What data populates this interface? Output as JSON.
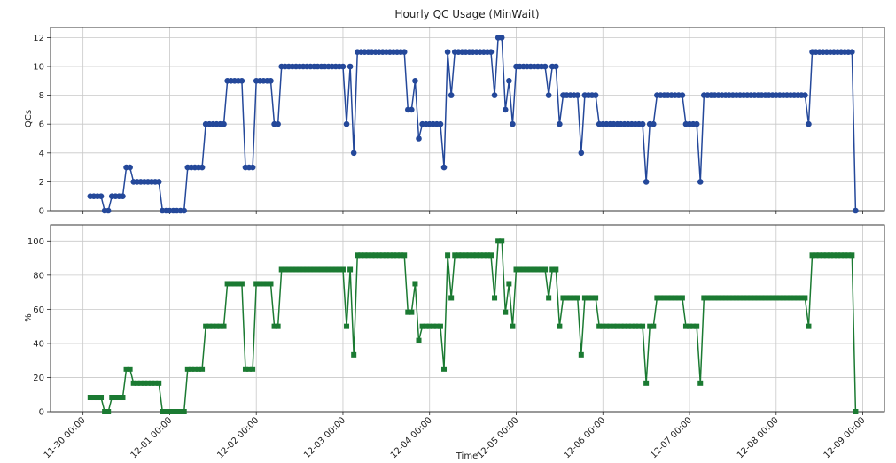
{
  "chart_data": [
    {
      "type": "line",
      "title": "Hourly QC Usage (MinWait)",
      "ylabel": "QCs",
      "marker": "circle",
      "grid": true,
      "x": [
        "11-30 02:00",
        "11-30 03:00",
        "11-30 04:00",
        "11-30 05:00",
        "11-30 06:00",
        "11-30 07:00",
        "11-30 08:00",
        "11-30 09:00",
        "11-30 10:00",
        "11-30 11:00",
        "11-30 12:00",
        "11-30 13:00",
        "11-30 14:00",
        "11-30 15:00",
        "11-30 16:00",
        "11-30 17:00",
        "11-30 18:00",
        "11-30 19:00",
        "11-30 20:00",
        "11-30 21:00",
        "11-30 22:00",
        "11-30 23:00",
        "12-01 00:00",
        "12-01 01:00",
        "12-01 02:00",
        "12-01 03:00",
        "12-01 04:00",
        "12-01 05:00",
        "12-01 06:00",
        "12-01 07:00",
        "12-01 08:00",
        "12-01 09:00",
        "12-01 10:00",
        "12-01 11:00",
        "12-01 12:00",
        "12-01 13:00",
        "12-01 14:00",
        "12-01 15:00",
        "12-01 16:00",
        "12-01 17:00",
        "12-01 18:00",
        "12-01 19:00",
        "12-01 20:00",
        "12-01 21:00",
        "12-01 22:00",
        "12-01 23:00",
        "12-02 00:00",
        "12-02 01:00",
        "12-02 02:00",
        "12-02 03:00",
        "12-02 04:00",
        "12-02 05:00",
        "12-02 06:00",
        "12-02 07:00",
        "12-02 08:00",
        "12-02 09:00",
        "12-02 10:00",
        "12-02 11:00",
        "12-02 12:00",
        "12-02 13:00",
        "12-02 14:00",
        "12-02 15:00",
        "12-02 16:00",
        "12-02 17:00",
        "12-02 18:00",
        "12-02 19:00",
        "12-02 20:00",
        "12-02 21:00",
        "12-02 22:00",
        "12-02 23:00",
        "12-03 00:00",
        "12-03 01:00",
        "12-03 02:00",
        "12-03 03:00",
        "12-03 04:00",
        "12-03 05:00",
        "12-03 06:00",
        "12-03 07:00",
        "12-03 08:00",
        "12-03 09:00",
        "12-03 10:00",
        "12-03 11:00",
        "12-03 12:00",
        "12-03 13:00",
        "12-03 14:00",
        "12-03 15:00",
        "12-03 16:00",
        "12-03 17:00",
        "12-03 18:00",
        "12-03 19:00",
        "12-03 20:00",
        "12-03 21:00",
        "12-03 22:00",
        "12-03 23:00",
        "12-04 00:00",
        "12-04 01:00",
        "12-04 02:00",
        "12-04 03:00",
        "12-04 04:00",
        "12-04 05:00",
        "12-04 06:00",
        "12-04 07:00",
        "12-04 08:00",
        "12-04 09:00",
        "12-04 10:00",
        "12-04 11:00",
        "12-04 12:00",
        "12-04 13:00",
        "12-04 14:00",
        "12-04 15:00",
        "12-04 16:00",
        "12-04 17:00",
        "12-04 18:00",
        "12-04 19:00",
        "12-04 20:00",
        "12-04 21:00",
        "12-04 22:00",
        "12-04 23:00",
        "12-05 00:00",
        "12-05 01:00",
        "12-05 02:00",
        "12-05 03:00",
        "12-05 04:00",
        "12-05 05:00",
        "12-05 06:00",
        "12-05 07:00",
        "12-05 08:00",
        "12-05 09:00",
        "12-05 10:00",
        "12-05 11:00",
        "12-05 12:00",
        "12-05 13:00",
        "12-05 14:00",
        "12-05 15:00",
        "12-05 16:00",
        "12-05 17:00",
        "12-05 18:00",
        "12-05 19:00",
        "12-05 20:00",
        "12-05 21:00",
        "12-05 22:00",
        "12-05 23:00",
        "12-06 00:00",
        "12-06 01:00",
        "12-06 02:00",
        "12-06 03:00",
        "12-06 04:00",
        "12-06 05:00",
        "12-06 06:00",
        "12-06 07:00",
        "12-06 08:00",
        "12-06 09:00",
        "12-06 10:00",
        "12-06 11:00",
        "12-06 12:00",
        "12-06 13:00",
        "12-06 14:00",
        "12-06 15:00",
        "12-06 16:00",
        "12-06 17:00",
        "12-06 18:00",
        "12-06 19:00",
        "12-06 20:00",
        "12-06 21:00",
        "12-06 22:00",
        "12-06 23:00",
        "12-07 00:00",
        "12-07 01:00",
        "12-07 02:00",
        "12-07 03:00",
        "12-07 04:00",
        "12-07 05:00",
        "12-07 06:00",
        "12-07 07:00",
        "12-07 08:00",
        "12-07 09:00",
        "12-07 10:00",
        "12-07 11:00",
        "12-07 12:00",
        "12-07 13:00",
        "12-07 14:00",
        "12-07 15:00",
        "12-07 16:00",
        "12-07 17:00",
        "12-07 18:00",
        "12-07 19:00",
        "12-07 20:00",
        "12-07 21:00",
        "12-07 22:00",
        "12-07 23:00",
        "12-08 00:00",
        "12-08 01:00",
        "12-08 02:00",
        "12-08 03:00",
        "12-08 04:00",
        "12-08 05:00",
        "12-08 06:00",
        "12-08 07:00",
        "12-08 08:00",
        "12-08 09:00",
        "12-08 10:00",
        "12-08 11:00",
        "12-08 12:00",
        "12-08 13:00",
        "12-08 14:00",
        "12-08 15:00",
        "12-08 16:00",
        "12-08 17:00",
        "12-08 18:00",
        "12-08 19:00",
        "12-08 20:00",
        "12-08 21:00",
        "12-08 22:00"
      ],
      "series": [
        {
          "color": "#24489a",
          "values": [
            1,
            1,
            1,
            1,
            0,
            0,
            1,
            1,
            1,
            1,
            3,
            3,
            2,
            2,
            2,
            2,
            2,
            2,
            2,
            2,
            0,
            0,
            0,
            0,
            0,
            0,
            0,
            3,
            3,
            3,
            3,
            3,
            6,
            6,
            6,
            6,
            6,
            6,
            9,
            9,
            9,
            9,
            9,
            3,
            3,
            3,
            9,
            9,
            9,
            9,
            9,
            6,
            6,
            10,
            10,
            10,
            10,
            10,
            10,
            10,
            10,
            10,
            10,
            10,
            10,
            10,
            10,
            10,
            10,
            10,
            10,
            6,
            10,
            4,
            11,
            11,
            11,
            11,
            11,
            11,
            11,
            11,
            11,
            11,
            11,
            11,
            11,
            11,
            7,
            7,
            9,
            5,
            6,
            6,
            6,
            6,
            6,
            6,
            3,
            11,
            8,
            11,
            11,
            11,
            11,
            11,
            11,
            11,
            11,
            11,
            11,
            11,
            8,
            12,
            12,
            7,
            9,
            6,
            10,
            10,
            10,
            10,
            10,
            10,
            10,
            10,
            10,
            8,
            10,
            10,
            6,
            8,
            8,
            8,
            8,
            8,
            4,
            8,
            8,
            8,
            8,
            6,
            6,
            6,
            6,
            6,
            6,
            6,
            6,
            6,
            6,
            6,
            6,
            6,
            2,
            6,
            6,
            8,
            8,
            8,
            8,
            8,
            8,
            8,
            8,
            6,
            6,
            6,
            6,
            2,
            8,
            8,
            8,
            8,
            8,
            8,
            8,
            8,
            8,
            8,
            8,
            8,
            8,
            8,
            8,
            8,
            8,
            8,
            8,
            8,
            8,
            8,
            8,
            8,
            8,
            8,
            8,
            8,
            8,
            6,
            11,
            11,
            11,
            11,
            11,
            11,
            11,
            11,
            11,
            11,
            11,
            11,
            0
          ]
        }
      ],
      "ylim": [
        0,
        12.7
      ],
      "yticks": [
        0,
        2,
        4,
        6,
        8,
        10,
        12
      ]
    },
    {
      "type": "line",
      "ylabel": "%",
      "xlabel": "Time",
      "marker": "square",
      "grid": true,
      "x": [
        "11-30 02:00",
        "11-30 03:00",
        "11-30 04:00",
        "11-30 05:00",
        "11-30 06:00",
        "11-30 07:00",
        "11-30 08:00",
        "11-30 09:00",
        "11-30 10:00",
        "11-30 11:00",
        "11-30 12:00",
        "11-30 13:00",
        "11-30 14:00",
        "11-30 15:00",
        "11-30 16:00",
        "11-30 17:00",
        "11-30 18:00",
        "11-30 19:00",
        "11-30 20:00",
        "11-30 21:00",
        "11-30 22:00",
        "11-30 23:00",
        "12-01 00:00",
        "12-01 01:00",
        "12-01 02:00",
        "12-01 03:00",
        "12-01 04:00",
        "12-01 05:00",
        "12-01 06:00",
        "12-01 07:00",
        "12-01 08:00",
        "12-01 09:00",
        "12-01 10:00",
        "12-01 11:00",
        "12-01 12:00",
        "12-01 13:00",
        "12-01 14:00",
        "12-01 15:00",
        "12-01 16:00",
        "12-01 17:00",
        "12-01 18:00",
        "12-01 19:00",
        "12-01 20:00",
        "12-01 21:00",
        "12-01 22:00",
        "12-01 23:00",
        "12-02 00:00",
        "12-02 01:00",
        "12-02 02:00",
        "12-02 03:00",
        "12-02 04:00",
        "12-02 05:00",
        "12-02 06:00",
        "12-02 07:00",
        "12-02 08:00",
        "12-02 09:00",
        "12-02 10:00",
        "12-02 11:00",
        "12-02 12:00",
        "12-02 13:00",
        "12-02 14:00",
        "12-02 15:00",
        "12-02 16:00",
        "12-02 17:00",
        "12-02 18:00",
        "12-02 19:00",
        "12-02 20:00",
        "12-02 21:00",
        "12-02 22:00",
        "12-02 23:00",
        "12-03 00:00",
        "12-03 01:00",
        "12-03 02:00",
        "12-03 03:00",
        "12-03 04:00",
        "12-03 05:00",
        "12-03 06:00",
        "12-03 07:00",
        "12-03 08:00",
        "12-03 09:00",
        "12-03 10:00",
        "12-03 11:00",
        "12-03 12:00",
        "12-03 13:00",
        "12-03 14:00",
        "12-03 15:00",
        "12-03 16:00",
        "12-03 17:00",
        "12-03 18:00",
        "12-03 19:00",
        "12-03 20:00",
        "12-03 21:00",
        "12-03 22:00",
        "12-03 23:00",
        "12-04 00:00",
        "12-04 01:00",
        "12-04 02:00",
        "12-04 03:00",
        "12-04 04:00",
        "12-04 05:00",
        "12-04 06:00",
        "12-04 07:00",
        "12-04 08:00",
        "12-04 09:00",
        "12-04 10:00",
        "12-04 11:00",
        "12-04 12:00",
        "12-04 13:00",
        "12-04 14:00",
        "12-04 15:00",
        "12-04 16:00",
        "12-04 17:00",
        "12-04 18:00",
        "12-04 19:00",
        "12-04 20:00",
        "12-04 21:00",
        "12-04 22:00",
        "12-04 23:00",
        "12-05 00:00",
        "12-05 01:00",
        "12-05 02:00",
        "12-05 03:00",
        "12-05 04:00",
        "12-05 05:00",
        "12-05 06:00",
        "12-05 07:00",
        "12-05 08:00",
        "12-05 09:00",
        "12-05 10:00",
        "12-05 11:00",
        "12-05 12:00",
        "12-05 13:00",
        "12-05 14:00",
        "12-05 15:00",
        "12-05 16:00",
        "12-05 17:00",
        "12-05 18:00",
        "12-05 19:00",
        "12-05 20:00",
        "12-05 21:00",
        "12-05 22:00",
        "12-05 23:00",
        "12-06 00:00",
        "12-06 01:00",
        "12-06 02:00",
        "12-06 03:00",
        "12-06 04:00",
        "12-06 05:00",
        "12-06 06:00",
        "12-06 07:00",
        "12-06 08:00",
        "12-06 09:00",
        "12-06 10:00",
        "12-06 11:00",
        "12-06 12:00",
        "12-06 13:00",
        "12-06 14:00",
        "12-06 15:00",
        "12-06 16:00",
        "12-06 17:00",
        "12-06 18:00",
        "12-06 19:00",
        "12-06 20:00",
        "12-06 21:00",
        "12-06 22:00",
        "12-06 23:00",
        "12-07 00:00",
        "12-07 01:00",
        "12-07 02:00",
        "12-07 03:00",
        "12-07 04:00",
        "12-07 05:00",
        "12-07 06:00",
        "12-07 07:00",
        "12-07 08:00",
        "12-07 09:00",
        "12-07 10:00",
        "12-07 11:00",
        "12-07 12:00",
        "12-07 13:00",
        "12-07 14:00",
        "12-07 15:00",
        "12-07 16:00",
        "12-07 17:00",
        "12-07 18:00",
        "12-07 19:00",
        "12-07 20:00",
        "12-07 21:00",
        "12-07 22:00",
        "12-07 23:00",
        "12-08 00:00",
        "12-08 01:00",
        "12-08 02:00",
        "12-08 03:00",
        "12-08 04:00",
        "12-08 05:00",
        "12-08 06:00",
        "12-08 07:00",
        "12-08 08:00",
        "12-08 09:00",
        "12-08 10:00",
        "12-08 11:00",
        "12-08 12:00",
        "12-08 13:00",
        "12-08 14:00",
        "12-08 15:00",
        "12-08 16:00",
        "12-08 17:00",
        "12-08 18:00",
        "12-08 19:00",
        "12-08 20:00",
        "12-08 21:00",
        "12-08 22:00"
      ],
      "series": [
        {
          "color": "#1b7a32",
          "values": [
            8.3,
            8.3,
            8.3,
            8.3,
            0,
            0,
            8.3,
            8.3,
            8.3,
            8.3,
            25,
            25,
            16.7,
            16.7,
            16.7,
            16.7,
            16.7,
            16.7,
            16.7,
            16.7,
            0,
            0,
            0,
            0,
            0,
            0,
            0,
            25,
            25,
            25,
            25,
            25,
            50,
            50,
            50,
            50,
            50,
            50,
            75,
            75,
            75,
            75,
            75,
            25,
            25,
            25,
            75,
            75,
            75,
            75,
            75,
            50,
            50,
            83.3,
            83.3,
            83.3,
            83.3,
            83.3,
            83.3,
            83.3,
            83.3,
            83.3,
            83.3,
            83.3,
            83.3,
            83.3,
            83.3,
            83.3,
            83.3,
            83.3,
            83.3,
            50,
            83.3,
            33.3,
            91.7,
            91.7,
            91.7,
            91.7,
            91.7,
            91.7,
            91.7,
            91.7,
            91.7,
            91.7,
            91.7,
            91.7,
            91.7,
            91.7,
            58.3,
            58.3,
            75,
            41.7,
            50,
            50,
            50,
            50,
            50,
            50,
            25,
            91.7,
            66.7,
            91.7,
            91.7,
            91.7,
            91.7,
            91.7,
            91.7,
            91.7,
            91.7,
            91.7,
            91.7,
            91.7,
            66.7,
            100,
            100,
            58.3,
            75,
            50,
            83.3,
            83.3,
            83.3,
            83.3,
            83.3,
            83.3,
            83.3,
            83.3,
            83.3,
            66.7,
            83.3,
            83.3,
            50,
            66.7,
            66.7,
            66.7,
            66.7,
            66.7,
            33.3,
            66.7,
            66.7,
            66.7,
            66.7,
            50,
            50,
            50,
            50,
            50,
            50,
            50,
            50,
            50,
            50,
            50,
            50,
            50,
            16.7,
            50,
            50,
            66.7,
            66.7,
            66.7,
            66.7,
            66.7,
            66.7,
            66.7,
            66.7,
            50,
            50,
            50,
            50,
            16.7,
            66.7,
            66.7,
            66.7,
            66.7,
            66.7,
            66.7,
            66.7,
            66.7,
            66.7,
            66.7,
            66.7,
            66.7,
            66.7,
            66.7,
            66.7,
            66.7,
            66.7,
            66.7,
            66.7,
            66.7,
            66.7,
            66.7,
            66.7,
            66.7,
            66.7,
            66.7,
            66.7,
            66.7,
            66.7,
            50,
            91.7,
            91.7,
            91.7,
            91.7,
            91.7,
            91.7,
            91.7,
            91.7,
            91.7,
            91.7,
            91.7,
            91.7,
            0
          ]
        }
      ],
      "ylim": [
        0,
        109.5
      ],
      "yticks": [
        0,
        20,
        40,
        60,
        80,
        100
      ],
      "xlim": [
        "11-29 15:00",
        "12-09 06:00"
      ],
      "xticks": [
        "11-30 00:00",
        "12-01 00:00",
        "12-02 00:00",
        "12-03 00:00",
        "12-04 00:00",
        "12-05 00:00",
        "12-06 00:00",
        "12-07 00:00",
        "12-08 00:00",
        "12-09 00:00"
      ]
    }
  ]
}
